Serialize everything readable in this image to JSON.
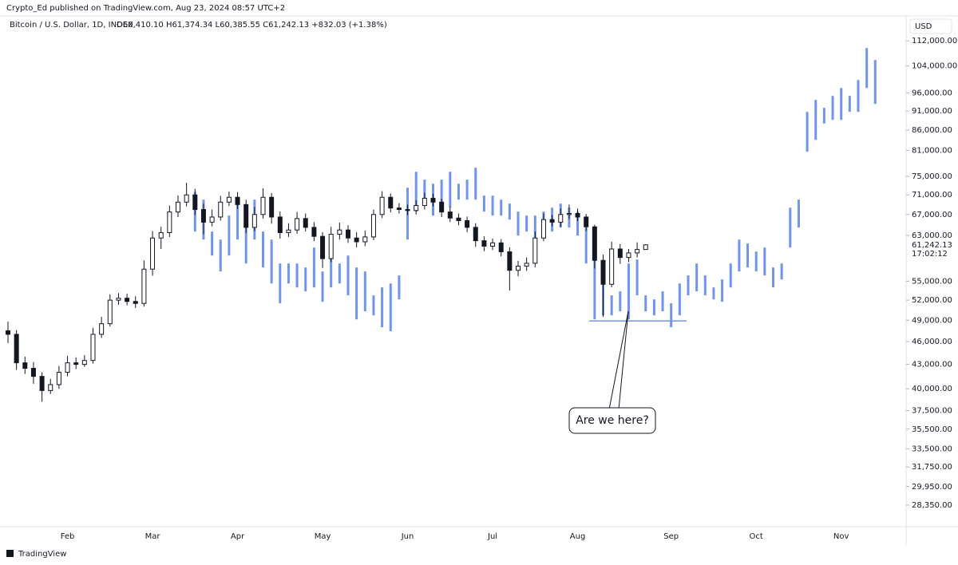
{
  "header": {
    "byline": "Crypto_Ed published on TradingView.com, Aug 23, 2024 08:57 UTC+2",
    "symbol": "Bitcoin / U.S. Dollar, 1D, INDEX",
    "ohlc": "O60,410.10 H61,374.34 L60,385.55 C61,242.13 +832.03 (+1.38%)"
  },
  "footer": {
    "brand": "TradingView"
  },
  "chart_data": {
    "type": "candlestick",
    "currency": "USD",
    "log_scale": true,
    "grid": false,
    "annotation": "Are we here?",
    "support_level": 48900,
    "last_price": {
      "value": 61242.13,
      "label": "61,242.13"
    },
    "countdown": "17:02:12",
    "categories": [
      null,
      null,
      null,
      null,
      null,
      null,
      null,
      "Feb",
      null,
      null,
      null,
      null,
      null,
      null,
      null,
      null,
      null,
      "Mar",
      null,
      null,
      null,
      null,
      null,
      null,
      null,
      null,
      null,
      "Apr",
      null,
      null,
      null,
      null,
      null,
      null,
      null,
      null,
      null,
      "May",
      null,
      null,
      null,
      null,
      null,
      null,
      null,
      null,
      null,
      "Jun",
      null,
      null,
      null,
      null,
      null,
      null,
      null,
      null,
      null,
      "Jul",
      null,
      null,
      null,
      null,
      null,
      null,
      null,
      null,
      null,
      "Aug",
      null,
      null,
      null,
      null,
      null,
      null,
      null,
      null,
      null,
      null,
      "Sep",
      null,
      null,
      null,
      null,
      null,
      null,
      null,
      null,
      null,
      "Oct",
      null,
      null,
      null,
      null,
      null,
      null,
      null,
      null,
      null,
      "Nov",
      null,
      null,
      null,
      null
    ],
    "ylim": [
      26600,
      115000
    ],
    "yticks": [
      {
        "value": 112000,
        "label": "112,000.00"
      },
      {
        "value": 104000,
        "label": "104,000.00"
      },
      {
        "value": 96000,
        "label": "96,000.00"
      },
      {
        "value": 91000,
        "label": "91,000.00"
      },
      {
        "value": 86000,
        "label": "86,000.00"
      },
      {
        "value": 81000,
        "label": "81,000.00"
      },
      {
        "value": 75000,
        "label": "75,000.00"
      },
      {
        "value": 71000,
        "label": "71,000.00"
      },
      {
        "value": 67000,
        "label": "67,000.00"
      },
      {
        "value": 63000,
        "label": "63,000.00"
      },
      {
        "value": 55000,
        "label": "55,000.00"
      },
      {
        "value": 52000,
        "label": "52,000.00"
      },
      {
        "value": 49000,
        "label": "49,000.00"
      },
      {
        "value": 46000,
        "label": "46,000.00"
      },
      {
        "value": 43000,
        "label": "43,000.00"
      },
      {
        "value": 40000,
        "label": "40,000.00"
      },
      {
        "value": 37500,
        "label": "37,500.00"
      },
      {
        "value": 35500,
        "label": "35,500.00"
      },
      {
        "value": 33500,
        "label": "33,500.00"
      },
      {
        "value": 31750,
        "label": "31,750.00"
      },
      {
        "value": 29950,
        "label": "29,950.00"
      },
      {
        "value": 28350,
        "label": "28,350.00"
      }
    ],
    "series": [
      {
        "type": "candlestick",
        "color": "#131722",
        "open": [
          47500,
          47000,
          43200,
          42500,
          41500,
          39800,
          40500,
          42000,
          43200,
          43000,
          43500,
          47000,
          48500,
          52000,
          52300,
          51800,
          51500,
          57000,
          62500,
          63500,
          67500,
          69500,
          71000,
          68000,
          65500,
          66500,
          69500,
          70500,
          69000,
          64500,
          67000,
          70500,
          66500,
          63500,
          64000,
          66200,
          64500,
          62800,
          58800,
          63200,
          64000,
          62500,
          61800,
          62700,
          67000,
          70500,
          68300,
          68000,
          67800,
          68800,
          70300,
          69500,
          67500,
          66300,
          65800,
          64500,
          62000,
          61000,
          61600,
          60000,
          56800,
          57500,
          58000,
          62500,
          66000,
          65500,
          67000,
          67200,
          66500,
          64600,
          58500,
          54500,
          60500,
          59000,
          59800,
          60410.1,
          null,
          null,
          null,
          null,
          null,
          null,
          null,
          null,
          null,
          null,
          null,
          null,
          null,
          null,
          null,
          null,
          null,
          null,
          null,
          null,
          null,
          null,
          null,
          null,
          null,
          null,
          null
        ],
        "high": [
          48800,
          47600,
          44000,
          43300,
          42000,
          41200,
          42800,
          44100,
          43900,
          44200,
          47900,
          49500,
          52900,
          53100,
          53000,
          52600,
          58500,
          63800,
          64600,
          68800,
          70900,
          73600,
          72300,
          69200,
          68000,
          70800,
          71700,
          71600,
          70000,
          68500,
          72400,
          71400,
          67600,
          65300,
          67500,
          67200,
          65500,
          63600,
          64600,
          65400,
          64900,
          63600,
          63900,
          68000,
          71800,
          71300,
          69300,
          69000,
          69900,
          71500,
          71200,
          70200,
          68500,
          67200,
          66600,
          65300,
          62800,
          62400,
          62300,
          60800,
          58400,
          59000,
          63700,
          67200,
          66900,
          68200,
          69000,
          68200,
          67100,
          65000,
          59500,
          61800,
          61400,
          60500,
          61700,
          61374.34,
          null,
          null,
          null,
          null,
          null,
          null,
          null,
          null,
          null,
          null,
          null,
          null,
          null,
          null,
          null,
          null,
          null,
          null,
          null,
          null,
          null,
          null,
          null,
          null,
          null,
          null,
          null
        ],
        "low": [
          45800,
          42300,
          41800,
          40600,
          38500,
          39400,
          40000,
          41500,
          42400,
          42700,
          43100,
          46500,
          48100,
          51300,
          51200,
          50800,
          51000,
          55900,
          60500,
          62700,
          66500,
          68600,
          66900,
          63200,
          64700,
          65800,
          68700,
          68100,
          63400,
          63800,
          66200,
          65200,
          62400,
          62700,
          63300,
          63700,
          61900,
          57200,
          58200,
          62200,
          61600,
          60800,
          61000,
          62100,
          66300,
          67400,
          67200,
          66900,
          67000,
          68000,
          68600,
          66500,
          65500,
          64900,
          63600,
          60900,
          60100,
          60300,
          59200,
          53500,
          55800,
          56700,
          57300,
          61900,
          64700,
          64600,
          66100,
          65700,
          63800,
          57100,
          49500,
          54000,
          57900,
          58200,
          59000,
          60385.55,
          null,
          null,
          null,
          null,
          null,
          null,
          null,
          null,
          null,
          null,
          null,
          null,
          null,
          null,
          null,
          null,
          null,
          null,
          null,
          null,
          null,
          null,
          null,
          null,
          null,
          null,
          null
        ],
        "close": [
          47000,
          43200,
          42500,
          41500,
          39800,
          40500,
          42000,
          43200,
          43000,
          43500,
          47000,
          48500,
          52000,
          52300,
          51800,
          51500,
          57000,
          62500,
          63500,
          67500,
          69500,
          71000,
          68000,
          65500,
          66500,
          69500,
          70500,
          69000,
          64500,
          67000,
          70500,
          66500,
          63500,
          64000,
          66200,
          64500,
          62800,
          58800,
          63200,
          64000,
          62500,
          61800,
          62700,
          67000,
          70500,
          68300,
          68000,
          67800,
          68800,
          70300,
          69500,
          67500,
          66300,
          65800,
          64500,
          62000,
          61000,
          61600,
          60000,
          56800,
          57500,
          58000,
          62500,
          66000,
          65500,
          67000,
          67200,
          66500,
          64600,
          58500,
          54500,
          60500,
          59000,
          59800,
          60410.1,
          61242.13,
          null,
          null,
          null,
          null,
          null,
          null,
          null,
          null,
          null,
          null,
          null,
          null,
          null,
          null,
          null,
          null,
          null,
          null,
          null,
          null,
          null,
          null,
          null,
          null,
          null,
          null,
          null
        ]
      },
      {
        "type": "range_bar",
        "color": "#6f96ea",
        "high": [
          null,
          null,
          null,
          null,
          null,
          null,
          null,
          null,
          null,
          null,
          null,
          null,
          null,
          null,
          null,
          null,
          null,
          null,
          null,
          null,
          null,
          null,
          71680,
          70010,
          63700,
          62210,
          66780,
          70010,
          65220,
          70010,
          63700,
          62210,
          57960,
          57960,
          57960,
          57280,
          60760,
          56610,
          59340,
          57960,
          59340,
          57280,
          56610,
          52740,
          54000,
          54640,
          55950,
          72530,
          76040,
          74270,
          73390,
          74270,
          76040,
          73390,
          74270,
          76940,
          70840,
          70840,
          70010,
          69190,
          67570,
          66780,
          66780,
          67570,
          68370,
          69190,
          68370,
          67570,
          64460,
          58650,
          56610,
          52740,
          53370,
          57960,
          58650,
          52740,
          52120,
          53370,
          51510,
          54640,
          55950,
          57960,
          55950,
          54000,
          55290,
          57960,
          62210,
          61480,
          60050,
          60760,
          57280,
          57960,
          68370,
          70010,
          90770,
          94040,
          91850,
          95160,
          97430,
          95160,
          99760,
          109640,
          105820
        ],
        "low": [
          null,
          null,
          null,
          null,
          null,
          null,
          null,
          null,
          null,
          null,
          null,
          null,
          null,
          null,
          null,
          null,
          null,
          null,
          null,
          null,
          null,
          null,
          63700,
          62210,
          59340,
          56610,
          59340,
          62210,
          57960,
          62210,
          57280,
          54640,
          51510,
          54640,
          54000,
          53370,
          54000,
          51750,
          54000,
          54640,
          52740,
          49130,
          50310,
          49720,
          47990,
          47430,
          52120,
          62210,
          67570,
          69190,
          66780,
          68370,
          68370,
          70010,
          70010,
          70010,
          67570,
          66780,
          66780,
          66000,
          62950,
          63700,
          62210,
          62950,
          63700,
          64460,
          64460,
          62950,
          57960,
          49130,
          49720,
          49720,
          50310,
          49130,
          52740,
          50310,
          49720,
          50310,
          47990,
          49720,
          52740,
          53370,
          52740,
          52120,
          51750,
          54000,
          56610,
          57280,
          56610,
          55950,
          54000,
          55290,
          60760,
          64460,
          80660,
          83570,
          87700,
          88650,
          88650,
          90770,
          90770,
          97430,
          92940
        ]
      }
    ]
  }
}
